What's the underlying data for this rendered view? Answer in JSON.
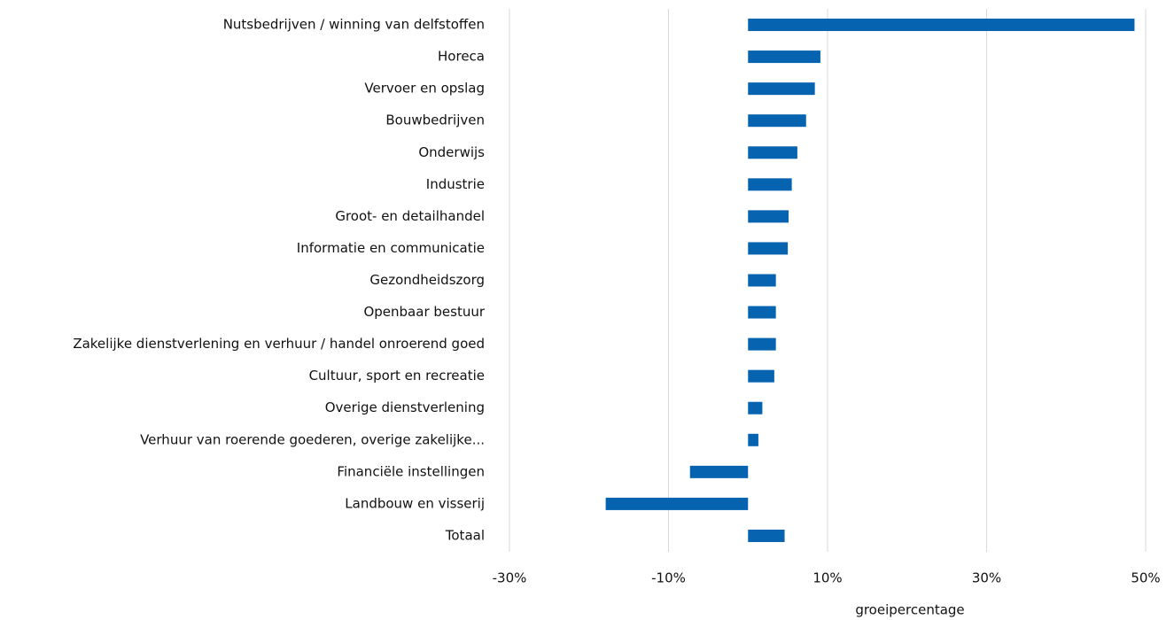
{
  "chart_data": {
    "type": "barh",
    "categories": [
      "Nutsbedrijven / winning van delfstoffen",
      "Horeca",
      "Vervoer en opslag",
      "Bouwbedrijven",
      "Onderwijs",
      "Industrie",
      "Groot- en detailhandel",
      "Informatie en communicatie",
      "Gezondheidszorg",
      "Openbaar bestuur",
      "Zakelijke dienstverlening en verhuur / handel onroerend goed",
      "Cultuur, sport en recreatie",
      "Overige dienstverlening",
      "Verhuur van roerende goederen, overige zakelijke...",
      "Financiële instellingen",
      "Landbouw en visserij",
      "Totaal"
    ],
    "values": [
      48.6,
      9.1,
      8.4,
      7.3,
      6.2,
      5.5,
      5.1,
      5.0,
      3.5,
      3.5,
      3.5,
      3.3,
      1.8,
      1.3,
      -7.3,
      -17.9,
      4.6
    ],
    "color": "#0563b0",
    "xlabel": "groeipercentage",
    "xlim": [
      -30,
      50
    ],
    "xticks": [
      {
        "value": -30,
        "label": "-30%"
      },
      {
        "value": -10,
        "label": "-10%"
      },
      {
        "value": 10,
        "label": "10%"
      },
      {
        "value": 30,
        "label": "30%"
      },
      {
        "value": 50,
        "label": "50%"
      }
    ],
    "grid": true
  }
}
